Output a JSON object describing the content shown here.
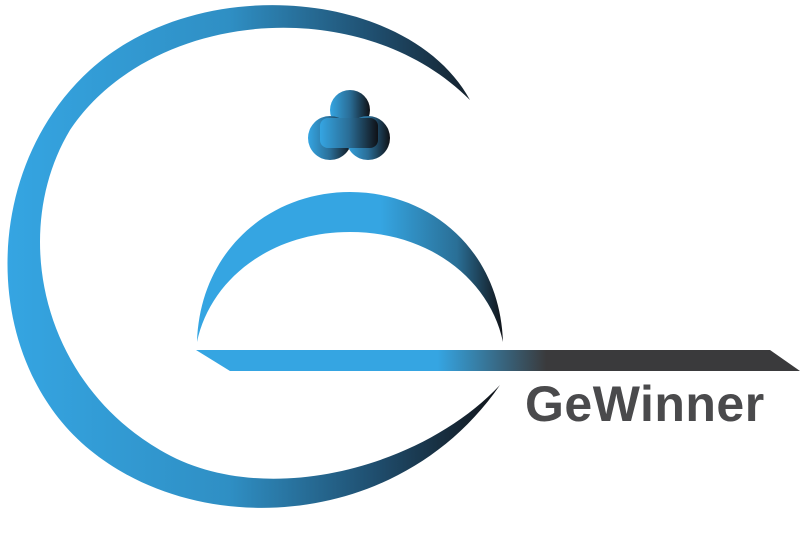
{
  "logo": {
    "brand_name": "GeWinner",
    "icon_name": "cloche-tray-icon",
    "colors": {
      "blue": "#35a5e2",
      "dark": "#1a1d24",
      "gray": "#3a3a3c",
      "text": "#4a4a4c",
      "background": "#ffffff"
    }
  }
}
